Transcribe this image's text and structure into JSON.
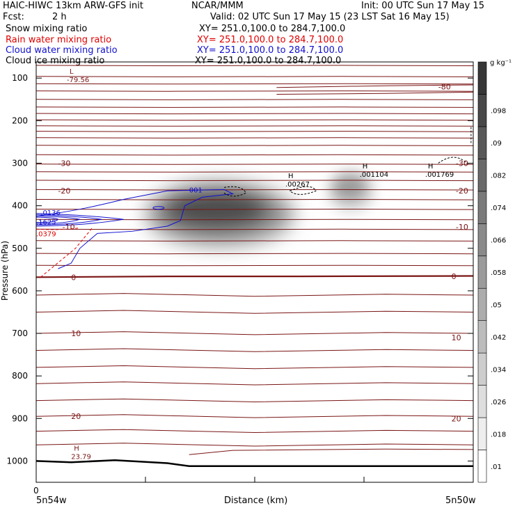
{
  "header": {
    "title_left": "HAIC-HIWC 13km ARW-GFS init",
    "title_center": "NCAR/MMM",
    "init": "Init: 00 UTC Sun 17 May 15",
    "fcst_label": "Fcst:",
    "fcst_value": "2 h",
    "valid": "Valid: 02 UTC Sun 17 May 15 (23 LST Sat 16 May 15)",
    "fields": [
      {
        "name": "Snow mixing ratio",
        "xy": "XY= 251.0,100.0 to 284.7,100.0",
        "color": "#000000"
      },
      {
        "name": "Rain water mixing ratio",
        "xy": "XY= 251.0,100.0 to 284.7,100.0",
        "color": "#e00000"
      },
      {
        "name": "Cloud water mixing ratio",
        "xy": "XY= 251.0,100.0 to 284.7,100.0",
        "color": "#1010d0"
      },
      {
        "name": "Cloud ice mixing ratio",
        "xy": "XY= 251.0,100.0 to 284.7,100.0",
        "color": "#000000"
      }
    ]
  },
  "chart_data": {
    "type": "cross-section",
    "xlabel": "Distance (km)",
    "ylabel": "Pressure (hPa)",
    "x_origin_label": "0",
    "x_left_label": "5n54w",
    "x_right_label": "5n50w",
    "y_ticks": [
      100,
      200,
      300,
      400,
      500,
      600,
      700,
      800,
      900,
      1000
    ],
    "ylim": [
      1050,
      62
    ],
    "colorbar": {
      "unit": "g kg⁻¹",
      "levels": [
        ".01",
        ".018",
        ".026",
        ".034",
        ".042",
        ".05",
        ".058",
        ".066",
        ".074",
        ".082",
        ".09",
        ".098"
      ]
    },
    "temperature_contour_labels": [
      {
        "text": "-80",
        "x": 0.92,
        "p": 120
      },
      {
        "text": "-30",
        "x": 0.05,
        "p": 300
      },
      {
        "text": "-30",
        "x": 0.96,
        "p": 300
      },
      {
        "text": "-20",
        "x": 0.05,
        "p": 365
      },
      {
        "text": "-20",
        "x": 0.96,
        "p": 365
      },
      {
        "text": "-10",
        "x": 0.96,
        "p": 450
      },
      {
        "text": "-10",
        "x": 0.06,
        "p": 450
      },
      {
        "text": "0",
        "x": 0.08,
        "p": 568
      },
      {
        "text": "0",
        "x": 0.95,
        "p": 566
      },
      {
        "text": "10",
        "x": 0.08,
        "p": 700
      },
      {
        "text": "10",
        "x": 0.95,
        "p": 710
      },
      {
        "text": "20",
        "x": 0.08,
        "p": 895
      },
      {
        "text": "20",
        "x": 0.95,
        "p": 900
      }
    ],
    "extrema_labels": [
      {
        "kind": "L",
        "value": "-79.56",
        "x": 0.07,
        "p": 100
      },
      {
        "kind": "H",
        "value": ".00267",
        "x": 0.57,
        "p": 345
      },
      {
        "kind": "H",
        "value": ".001104",
        "x": 0.74,
        "p": 322
      },
      {
        "kind": "H",
        "value": ".001769",
        "x": 0.89,
        "p": 322
      },
      {
        "kind": "H",
        "value": "23.79",
        "x": 0.08,
        "p": 985
      }
    ],
    "cloud_water_labels": [
      {
        "text": "001",
        "x": 0.35,
        "p": 362
      },
      {
        "text": ".0136",
        "x": 0.01,
        "p": 415
      },
      {
        "text": ".1625",
        "x": 0.0,
        "p": 437
      }
    ],
    "rain_labels": [
      {
        "text": ".0379",
        "x": 0.0,
        "p": 465
      }
    ],
    "snow_blobs": [
      {
        "x_center": 0.42,
        "p_center": 420,
        "x_radius": 0.17,
        "p_radius": 75,
        "max": 0.09
      },
      {
        "x_center": 0.72,
        "p_center": 365,
        "x_radius": 0.055,
        "p_radius": 50,
        "max": 0.05
      }
    ]
  }
}
